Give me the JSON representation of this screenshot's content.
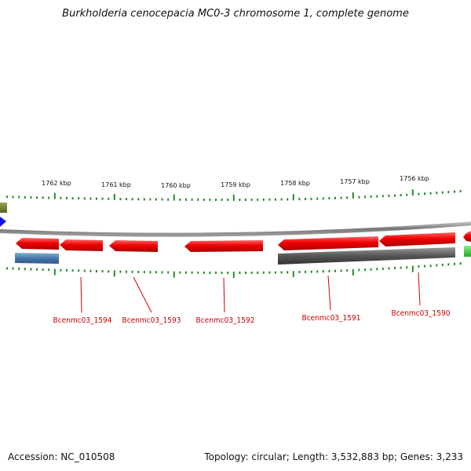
{
  "title": "Burkholderia cenocepacia MC0-3 chromosome 1, complete genome",
  "footer": {
    "accession": "Accession: NC_010508",
    "topology": "Topology: circular; Length: 3,532,883 bp; Genes: 3,233"
  },
  "colors": {
    "gene_forward": "#ee1111",
    "gene_reverse_gray": "#555555",
    "gene_blue": "#4477aa",
    "backbone": "#888888",
    "tick": "#2a8a2a",
    "label": "#cc0000"
  },
  "ticks": [
    {
      "label": "1762 kbp"
    },
    {
      "label": "1761 kbp"
    },
    {
      "label": "1760 kbp"
    },
    {
      "label": "1759 kbp"
    },
    {
      "label": "1758 kbp"
    },
    {
      "label": "1757 kbp"
    },
    {
      "label": "1756 kbp"
    }
  ],
  "gene_labels": [
    {
      "name": "Bcenmc03_1594"
    },
    {
      "name": "Bcenmc03_1593"
    },
    {
      "name": "Bcenmc03_1592"
    },
    {
      "name": "Bcenmc03_1591"
    },
    {
      "name": "Bcenmc03_1590"
    }
  ]
}
